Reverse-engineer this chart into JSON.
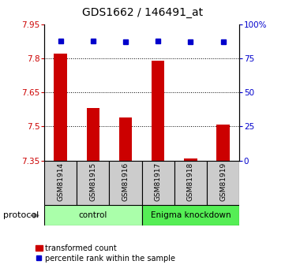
{
  "title": "GDS1662 / 146491_at",
  "samples": [
    "GSM81914",
    "GSM81915",
    "GSM81916",
    "GSM81917",
    "GSM81918",
    "GSM81919"
  ],
  "bar_values": [
    7.82,
    7.58,
    7.54,
    7.79,
    7.36,
    7.51
  ],
  "percentile_values": [
    88,
    88,
    87,
    88,
    87,
    87
  ],
  "ylim_left": [
    7.35,
    7.95
  ],
  "ylim_right": [
    0,
    100
  ],
  "yticks_left": [
    7.35,
    7.5,
    7.65,
    7.8,
    7.95
  ],
  "ytick_labels_left": [
    "7.35",
    "7.5",
    "7.65",
    "7.8",
    "7.95"
  ],
  "yticks_right": [
    0,
    25,
    50,
    75,
    100
  ],
  "ytick_labels_right": [
    "0",
    "25",
    "50",
    "75",
    "100%"
  ],
  "grid_lines": [
    7.5,
    7.65,
    7.8
  ],
  "bar_color": "#cc0000",
  "dot_color": "#0000cc",
  "bar_bottom": 7.35,
  "protocol_groups": [
    {
      "label": "control",
      "start": 0,
      "end": 3,
      "color": "#aaffaa"
    },
    {
      "label": "Enigma knockdown",
      "start": 3,
      "end": 6,
      "color": "#55ee55"
    }
  ],
  "protocol_label": "protocol",
  "legend_bar_label": "transformed count",
  "legend_dot_label": "percentile rank within the sample",
  "left_tick_color": "#cc0000",
  "right_tick_color": "#0000cc",
  "background_color": "#ffffff",
  "plot_bg_color": "#ffffff",
  "label_area_color": "#cccccc",
  "bar_width": 0.4
}
